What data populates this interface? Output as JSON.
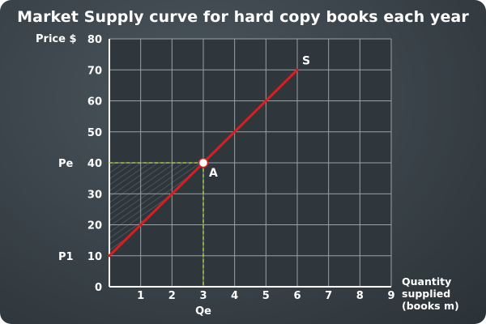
{
  "chart_data": {
    "type": "line",
    "title": "Market Supply curve for hard copy books each year",
    "ylabel": "Price $",
    "xlabel": [
      "Quantity",
      "supplied",
      "(books m)"
    ],
    "xlim": [
      0,
      9
    ],
    "ylim": [
      0,
      80
    ],
    "xticks": [
      1,
      2,
      3,
      4,
      5,
      6,
      7,
      8,
      9
    ],
    "yticks": [
      0,
      10,
      20,
      30,
      40,
      50,
      60,
      70,
      80
    ],
    "grid": true,
    "series": [
      {
        "name": "S",
        "x": [
          0,
          6
        ],
        "y": [
          10,
          70
        ],
        "color": "#d71f1f"
      }
    ],
    "point": {
      "label": "A",
      "x": 3,
      "y": 40
    },
    "equilibrium_labels": {
      "price": "Pe",
      "quantity": "Qe"
    },
    "p1_label": "P1",
    "p1_value": 10,
    "dashed_color": "#9ccc3c",
    "shaded_region": "producer surplus"
  }
}
